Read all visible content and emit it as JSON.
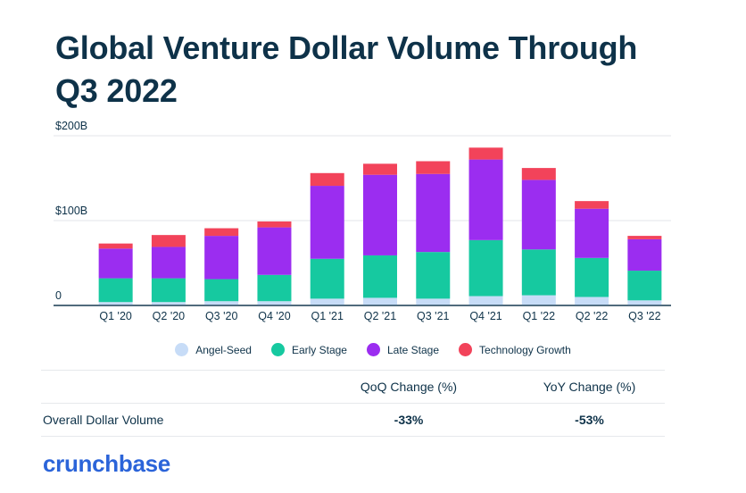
{
  "title_lines": [
    "Global Venture Dollar Volume Through",
    "Q3 2022"
  ],
  "colors": {
    "angel_seed": "#c7dcf7",
    "early_stage": "#16c9a0",
    "late_stage": "#9b2df0",
    "technology_growth": "#f2435a",
    "text": "#0e3249",
    "grid": "#e3e6ea",
    "logo": "#2b64d9"
  },
  "chart_data": {
    "type": "bar",
    "stacked": true,
    "categories": [
      "Q1 '20",
      "Q2 '20",
      "Q3 '20",
      "Q4 '20",
      "Q1 '21",
      "Q2 '21",
      "Q3 '21",
      "Q4 '21",
      "Q1 '22",
      "Q2 '22",
      "Q3 '22"
    ],
    "series": [
      {
        "name": "Angel-Seed",
        "values": [
          4,
          4,
          5,
          5,
          8,
          9,
          8,
          11,
          12,
          10,
          6
        ]
      },
      {
        "name": "Early Stage",
        "values": [
          28,
          28,
          26,
          31,
          47,
          50,
          55,
          66,
          54,
          46,
          35
        ]
      },
      {
        "name": "Late Stage",
        "values": [
          35,
          37,
          51,
          56,
          86,
          95,
          92,
          95,
          82,
          58,
          37
        ]
      },
      {
        "name": "Technology Growth",
        "values": [
          6,
          14,
          9,
          7,
          15,
          13,
          15,
          14,
          14,
          9,
          4
        ]
      }
    ],
    "y_tick_labels": [
      "0",
      "$100B",
      "$200B"
    ],
    "y_ticks": [
      0,
      100,
      200
    ],
    "ylim": [
      0,
      200
    ],
    "grid": true,
    "legend_position": "bottom-center"
  },
  "legend": [
    {
      "label": "Angel-Seed",
      "color_key": "angel_seed"
    },
    {
      "label": "Early Stage",
      "color_key": "early_stage"
    },
    {
      "label": "Late Stage",
      "color_key": "late_stage"
    },
    {
      "label": "Technology Growth",
      "color_key": "technology_growth"
    }
  ],
  "table": {
    "headers": [
      "",
      "QoQ Change (%)",
      "YoY Change (%)"
    ],
    "rows": [
      {
        "label": "Overall Dollar Volume",
        "qoq": "-33%",
        "yoy": "-53%"
      }
    ]
  },
  "brand": "crunchbase"
}
